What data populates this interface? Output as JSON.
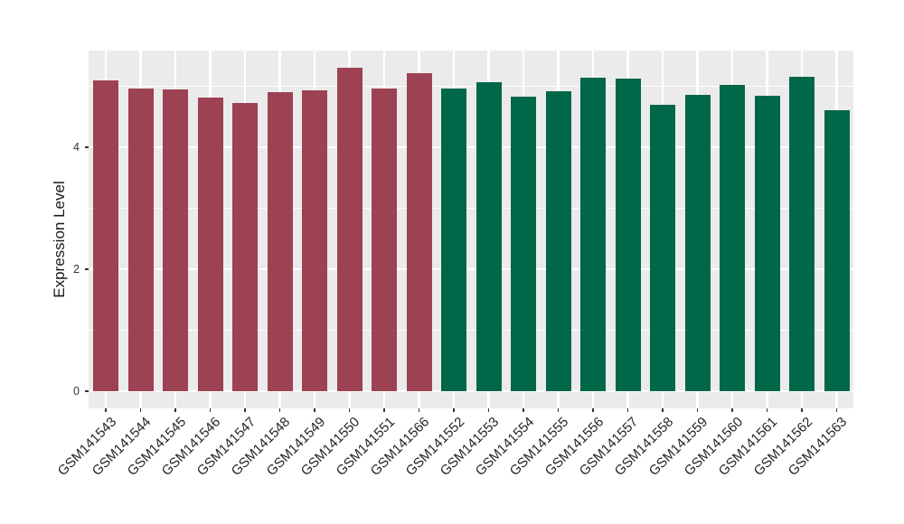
{
  "figure": {
    "background": "#FFFFFF"
  },
  "chart_data": {
    "type": "bar",
    "title": "",
    "ylabel": "Expression Level",
    "xlabel": "",
    "ylim": [
      0,
      5.6
    ],
    "yticks": [
      "0",
      "2",
      "4"
    ],
    "ytick_values": [
      0,
      2,
      4
    ],
    "grid": {
      "horizontal_major_at": [
        0,
        2,
        4
      ],
      "horizontal_minor_at": [
        1,
        3,
        5
      ],
      "vertical_major": "one per category center",
      "gridline_color": "#FFFFFF",
      "panel_background": "#EBEBEB"
    },
    "legend": "none",
    "x_label_rotation_deg": 45,
    "categories": [
      "GSM141543",
      "GSM141544",
      "GSM141545",
      "GSM141546",
      "GSM141547",
      "GSM141548",
      "GSM141549",
      "GSM141550",
      "GSM141551",
      "GSM141566",
      "GSM141552",
      "GSM141553",
      "GSM141554",
      "GSM141555",
      "GSM141556",
      "GSM141557",
      "GSM141558",
      "GSM141559",
      "GSM141560",
      "GSM141561",
      "GSM141562",
      "GSM141563"
    ],
    "values": [
      5.09,
      4.96,
      4.95,
      4.81,
      4.72,
      4.9,
      4.94,
      5.31,
      4.96,
      5.21,
      4.97,
      5.07,
      4.83,
      4.92,
      5.14,
      5.12,
      4.7,
      4.86,
      5.02,
      4.84,
      5.15,
      4.61
    ],
    "groups": [
      "red",
      "red",
      "red",
      "red",
      "red",
      "red",
      "red",
      "red",
      "red",
      "red",
      "green",
      "green",
      "green",
      "green",
      "green",
      "green",
      "green",
      "green",
      "green",
      "green",
      "green",
      "green"
    ],
    "group_colors": {
      "red": "#9C4252",
      "green": "#006748"
    }
  }
}
